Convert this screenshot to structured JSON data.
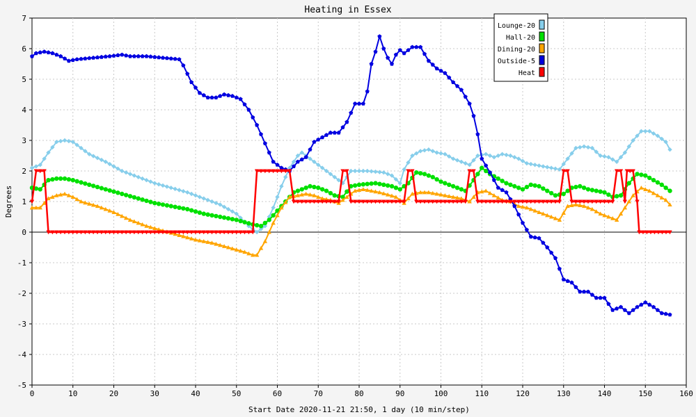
{
  "chart_data": {
    "type": "line",
    "title": "Heating in Essex",
    "xlabel": "Start Date 2020-11-21 21:50, 1 day (10 min/step)",
    "ylabel": "Degrees",
    "xlim": [
      0,
      160
    ],
    "ylim": [
      -5,
      7
    ],
    "xticks": [
      0,
      10,
      20,
      30,
      40,
      50,
      60,
      70,
      80,
      90,
      100,
      110,
      120,
      130,
      140,
      150,
      160
    ],
    "yticks": [
      -5,
      -4,
      -3,
      -2,
      -1,
      0,
      1,
      2,
      3,
      4,
      5,
      6,
      7
    ],
    "grid": true,
    "legend_position": "top-right",
    "series": [
      {
        "name": "Lounge-20",
        "color": "#87ceeb",
        "marker": "diamond",
        "points": [
          [
            0,
            2.1
          ],
          [
            2,
            2.2
          ],
          [
            4,
            2.6
          ],
          [
            6,
            2.95
          ],
          [
            8,
            3.0
          ],
          [
            10,
            2.95
          ],
          [
            12,
            2.75
          ],
          [
            14,
            2.55
          ],
          [
            18,
            2.3
          ],
          [
            22,
            2.0
          ],
          [
            26,
            1.8
          ],
          [
            30,
            1.6
          ],
          [
            34,
            1.45
          ],
          [
            38,
            1.3
          ],
          [
            42,
            1.1
          ],
          [
            46,
            0.9
          ],
          [
            50,
            0.6
          ],
          [
            53,
            0.2
          ],
          [
            55,
            0.0
          ],
          [
            57,
            0.2
          ],
          [
            59,
            0.8
          ],
          [
            61,
            1.5
          ],
          [
            63,
            2.1
          ],
          [
            65,
            2.5
          ],
          [
            66,
            2.6
          ],
          [
            68,
            2.4
          ],
          [
            70,
            2.2
          ],
          [
            72,
            2.0
          ],
          [
            74,
            1.8
          ],
          [
            76,
            1.6
          ],
          [
            78,
            2.0
          ],
          [
            82,
            2.0
          ],
          [
            86,
            1.95
          ],
          [
            88,
            1.85
          ],
          [
            90,
            1.6
          ],
          [
            91,
            2.05
          ],
          [
            93,
            2.5
          ],
          [
            95,
            2.65
          ],
          [
            97,
            2.7
          ],
          [
            99,
            2.6
          ],
          [
            101,
            2.55
          ],
          [
            103,
            2.4
          ],
          [
            105,
            2.3
          ],
          [
            107,
            2.2
          ],
          [
            109,
            2.5
          ],
          [
            111,
            2.55
          ],
          [
            113,
            2.45
          ],
          [
            115,
            2.55
          ],
          [
            117,
            2.5
          ],
          [
            119,
            2.4
          ],
          [
            121,
            2.25
          ],
          [
            123,
            2.2
          ],
          [
            125,
            2.15
          ],
          [
            127,
            2.1
          ],
          [
            129,
            2.05
          ],
          [
            131,
            2.4
          ],
          [
            133,
            2.75
          ],
          [
            135,
            2.8
          ],
          [
            137,
            2.75
          ],
          [
            139,
            2.5
          ],
          [
            141,
            2.45
          ],
          [
            143,
            2.3
          ],
          [
            145,
            2.6
          ],
          [
            147,
            3.0
          ],
          [
            149,
            3.3
          ],
          [
            151,
            3.3
          ],
          [
            153,
            3.15
          ],
          [
            155,
            2.95
          ],
          [
            156,
            2.7
          ]
        ]
      },
      {
        "name": "Hall-20",
        "color": "#00e000",
        "marker": "circle",
        "points": [
          [
            0,
            1.45
          ],
          [
            2,
            1.4
          ],
          [
            4,
            1.7
          ],
          [
            6,
            1.75
          ],
          [
            8,
            1.75
          ],
          [
            10,
            1.7
          ],
          [
            14,
            1.55
          ],
          [
            18,
            1.4
          ],
          [
            22,
            1.25
          ],
          [
            26,
            1.1
          ],
          [
            30,
            0.95
          ],
          [
            34,
            0.85
          ],
          [
            38,
            0.75
          ],
          [
            42,
            0.6
          ],
          [
            46,
            0.5
          ],
          [
            50,
            0.4
          ],
          [
            54,
            0.25
          ],
          [
            56,
            0.2
          ],
          [
            58,
            0.4
          ],
          [
            60,
            0.7
          ],
          [
            62,
            1.0
          ],
          [
            64,
            1.3
          ],
          [
            66,
            1.4
          ],
          [
            68,
            1.5
          ],
          [
            70,
            1.45
          ],
          [
            72,
            1.35
          ],
          [
            74,
            1.2
          ],
          [
            76,
            1.15
          ],
          [
            78,
            1.5
          ],
          [
            80,
            1.55
          ],
          [
            84,
            1.6
          ],
          [
            88,
            1.5
          ],
          [
            90,
            1.4
          ],
          [
            92,
            1.6
          ],
          [
            94,
            1.95
          ],
          [
            96,
            1.9
          ],
          [
            98,
            1.8
          ],
          [
            100,
            1.65
          ],
          [
            104,
            1.45
          ],
          [
            106,
            1.35
          ],
          [
            108,
            1.7
          ],
          [
            110,
            2.1
          ],
          [
            112,
            1.9
          ],
          [
            114,
            1.75
          ],
          [
            116,
            1.6
          ],
          [
            118,
            1.5
          ],
          [
            120,
            1.4
          ],
          [
            122,
            1.55
          ],
          [
            124,
            1.5
          ],
          [
            126,
            1.35
          ],
          [
            128,
            1.2
          ],
          [
            130,
            1.25
          ],
          [
            132,
            1.45
          ],
          [
            134,
            1.5
          ],
          [
            136,
            1.4
          ],
          [
            138,
            1.35
          ],
          [
            140,
            1.3
          ],
          [
            142,
            1.15
          ],
          [
            144,
            1.2
          ],
          [
            146,
            1.6
          ],
          [
            148,
            1.9
          ],
          [
            150,
            1.85
          ],
          [
            152,
            1.7
          ],
          [
            154,
            1.55
          ],
          [
            156,
            1.35
          ]
        ]
      },
      {
        "name": "Dining-20",
        "color": "#ffa500",
        "marker": "triangle",
        "points": [
          [
            0,
            0.8
          ],
          [
            2,
            0.8
          ],
          [
            4,
            1.1
          ],
          [
            6,
            1.2
          ],
          [
            8,
            1.25
          ],
          [
            10,
            1.15
          ],
          [
            12,
            1.0
          ],
          [
            16,
            0.85
          ],
          [
            20,
            0.65
          ],
          [
            24,
            0.4
          ],
          [
            28,
            0.2
          ],
          [
            32,
            0.05
          ],
          [
            36,
            -0.1
          ],
          [
            40,
            -0.25
          ],
          [
            44,
            -0.35
          ],
          [
            48,
            -0.5
          ],
          [
            52,
            -0.65
          ],
          [
            54,
            -0.75
          ],
          [
            55,
            -0.75
          ],
          [
            57,
            -0.3
          ],
          [
            59,
            0.3
          ],
          [
            61,
            0.8
          ],
          [
            63,
            1.15
          ],
          [
            65,
            1.2
          ],
          [
            67,
            1.25
          ],
          [
            69,
            1.2
          ],
          [
            71,
            1.1
          ],
          [
            73,
            1.05
          ],
          [
            75,
            0.95
          ],
          [
            77,
            1.15
          ],
          [
            79,
            1.35
          ],
          [
            81,
            1.4
          ],
          [
            85,
            1.3
          ],
          [
            89,
            1.15
          ],
          [
            91,
            0.95
          ],
          [
            93,
            1.25
          ],
          [
            95,
            1.3
          ],
          [
            97,
            1.3
          ],
          [
            101,
            1.2
          ],
          [
            105,
            1.1
          ],
          [
            107,
            1.0
          ],
          [
            109,
            1.3
          ],
          [
            111,
            1.35
          ],
          [
            113,
            1.2
          ],
          [
            115,
            1.05
          ],
          [
            117,
            1.0
          ],
          [
            119,
            0.85
          ],
          [
            121,
            0.8
          ],
          [
            123,
            0.7
          ],
          [
            125,
            0.6
          ],
          [
            127,
            0.5
          ],
          [
            129,
            0.4
          ],
          [
            131,
            0.85
          ],
          [
            133,
            0.9
          ],
          [
            135,
            0.85
          ],
          [
            137,
            0.75
          ],
          [
            139,
            0.6
          ],
          [
            141,
            0.5
          ],
          [
            143,
            0.4
          ],
          [
            145,
            0.8
          ],
          [
            147,
            1.2
          ],
          [
            149,
            1.45
          ],
          [
            151,
            1.35
          ],
          [
            153,
            1.2
          ],
          [
            155,
            1.05
          ],
          [
            156,
            0.9
          ]
        ]
      },
      {
        "name": "Outside-5",
        "color": "#0000e0",
        "marker": "pentagon",
        "points": [
          [
            0,
            5.75
          ],
          [
            1,
            5.85
          ],
          [
            3,
            5.9
          ],
          [
            5,
            5.85
          ],
          [
            7,
            5.75
          ],
          [
            9,
            5.6
          ],
          [
            11,
            5.65
          ],
          [
            15,
            5.7
          ],
          [
            19,
            5.75
          ],
          [
            22,
            5.8
          ],
          [
            24,
            5.75
          ],
          [
            28,
            5.75
          ],
          [
            32,
            5.7
          ],
          [
            36,
            5.65
          ],
          [
            37,
            5.45
          ],
          [
            39,
            4.9
          ],
          [
            41,
            4.55
          ],
          [
            43,
            4.4
          ],
          [
            45,
            4.4
          ],
          [
            47,
            4.5
          ],
          [
            49,
            4.45
          ],
          [
            51,
            4.35
          ],
          [
            53,
            4.0
          ],
          [
            55,
            3.5
          ],
          [
            57,
            2.9
          ],
          [
            59,
            2.3
          ],
          [
            61,
            2.1
          ],
          [
            63,
            2.0
          ],
          [
            65,
            2.3
          ],
          [
            67,
            2.45
          ],
          [
            69,
            2.95
          ],
          [
            71,
            3.1
          ],
          [
            73,
            3.25
          ],
          [
            75,
            3.25
          ],
          [
            77,
            3.6
          ],
          [
            78,
            3.9
          ],
          [
            79,
            4.2
          ],
          [
            81,
            4.2
          ],
          [
            82,
            4.6
          ],
          [
            83,
            5.5
          ],
          [
            84,
            5.9
          ],
          [
            85,
            6.4
          ],
          [
            86,
            6.0
          ],
          [
            87,
            5.7
          ],
          [
            88,
            5.5
          ],
          [
            89,
            5.8
          ],
          [
            90,
            5.95
          ],
          [
            91,
            5.85
          ],
          [
            93,
            6.05
          ],
          [
            95,
            6.05
          ],
          [
            97,
            5.6
          ],
          [
            99,
            5.35
          ],
          [
            101,
            5.2
          ],
          [
            103,
            4.9
          ],
          [
            105,
            4.65
          ],
          [
            107,
            4.2
          ],
          [
            108,
            3.8
          ],
          [
            109,
            3.2
          ],
          [
            110,
            2.4
          ],
          [
            112,
            1.95
          ],
          [
            114,
            1.45
          ],
          [
            116,
            1.3
          ],
          [
            118,
            0.85
          ],
          [
            120,
            0.3
          ],
          [
            122,
            -0.15
          ],
          [
            124,
            -0.2
          ],
          [
            126,
            -0.5
          ],
          [
            128,
            -0.85
          ],
          [
            130,
            -1.55
          ],
          [
            132,
            -1.65
          ],
          [
            134,
            -1.95
          ],
          [
            136,
            -1.95
          ],
          [
            138,
            -2.15
          ],
          [
            140,
            -2.15
          ],
          [
            142,
            -2.55
          ],
          [
            144,
            -2.45
          ],
          [
            146,
            -2.65
          ],
          [
            148,
            -2.45
          ],
          [
            150,
            -2.3
          ],
          [
            152,
            -2.45
          ],
          [
            154,
            -2.65
          ],
          [
            156,
            -2.7
          ]
        ]
      },
      {
        "name": "Heat",
        "color": "#ff0000",
        "marker": "triangle-down",
        "points": [
          [
            0,
            1.0
          ],
          [
            1,
            2.0
          ],
          [
            3,
            2.0
          ],
          [
            4,
            0.0
          ],
          [
            54,
            0.0
          ],
          [
            55,
            2.0
          ],
          [
            63,
            2.0
          ],
          [
            64,
            1.0
          ],
          [
            75,
            1.0
          ],
          [
            76,
            2.0
          ],
          [
            77,
            2.0
          ],
          [
            78,
            1.0
          ],
          [
            91,
            1.0
          ],
          [
            92,
            2.0
          ],
          [
            93,
            2.0
          ],
          [
            94,
            1.0
          ],
          [
            106,
            1.0
          ],
          [
            107,
            2.0
          ],
          [
            108,
            2.0
          ],
          [
            109,
            1.0
          ],
          [
            129,
            1.0
          ],
          [
            130,
            2.0
          ],
          [
            131,
            2.0
          ],
          [
            132,
            1.0
          ],
          [
            142,
            1.0
          ],
          [
            143,
            2.0
          ],
          [
            144,
            2.0
          ],
          [
            145,
            1.0
          ],
          [
            145.5,
            2.0
          ],
          [
            147,
            2.0
          ],
          [
            148,
            1.0
          ],
          [
            148.5,
            0.0
          ],
          [
            156,
            0.0
          ]
        ]
      }
    ]
  }
}
